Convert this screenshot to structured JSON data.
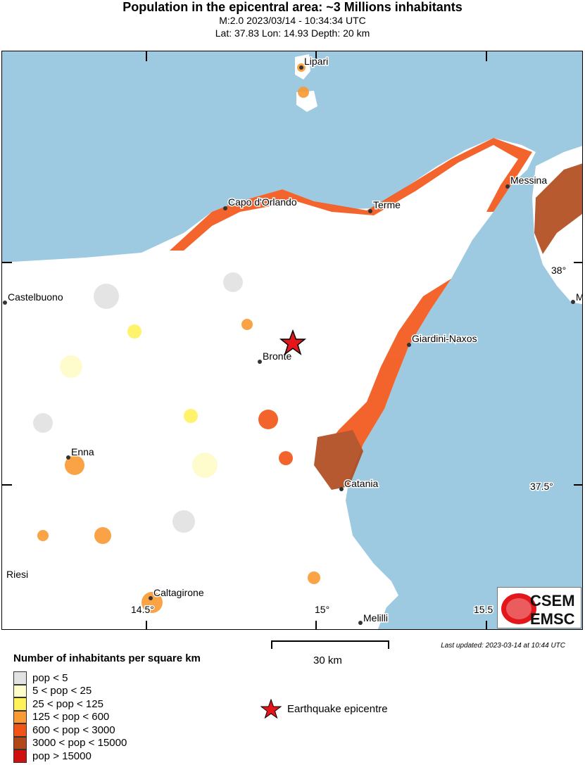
{
  "header": {
    "title": "Population in the epicentral area: ~3 Millions inhabitants",
    "line1": "M:2.0 2023/03/14 - 10:34:34 UTC",
    "line2": "Lat: 37.83 Lon: 14.93 Depth: 20 km"
  },
  "map": {
    "sea_color": "#9ecae1",
    "land_color": "#ffffff",
    "cities": [
      "Lipari",
      "Capo d'Orlando",
      "Terme",
      "Messina",
      "Castelbuono",
      "M",
      "Giardini-Naxos",
      "Bronte",
      "Enna",
      "Catania",
      "Riesi",
      "Caltagirone",
      "Melilli"
    ],
    "lat_labels": [
      "38°",
      "37.5°"
    ],
    "lon_labels": [
      "14.5°",
      "15°",
      "15.5"
    ],
    "epicentre": {
      "lat": 37.83,
      "lon": 14.93,
      "icon": "red-star-icon"
    }
  },
  "logo": {
    "top": "CSEM",
    "bottom": "EMSC"
  },
  "scale": {
    "label": "30 km"
  },
  "last_updated": "Last updated: 2023-03-14 at 10:44 UTC",
  "legend": {
    "title": "Number of inhabitants per square km",
    "items": [
      {
        "label": "pop < 5",
        "color": "#e2e2e2"
      },
      {
        "label": "5 < pop < 25",
        "color": "#fefcc8"
      },
      {
        "label": "25 < pop < 125",
        "color": "#fef25a"
      },
      {
        "label": "125 < pop < 600",
        "color": "#f99a32"
      },
      {
        "label": "600 < pop < 3000",
        "color": "#f25416"
      },
      {
        "label": "3000 < pop < 15000",
        "color": "#b0481a"
      },
      {
        "label": "pop > 15000",
        "color": "#d00f0f"
      }
    ],
    "epicentre_label": "Earthquake epicentre"
  }
}
